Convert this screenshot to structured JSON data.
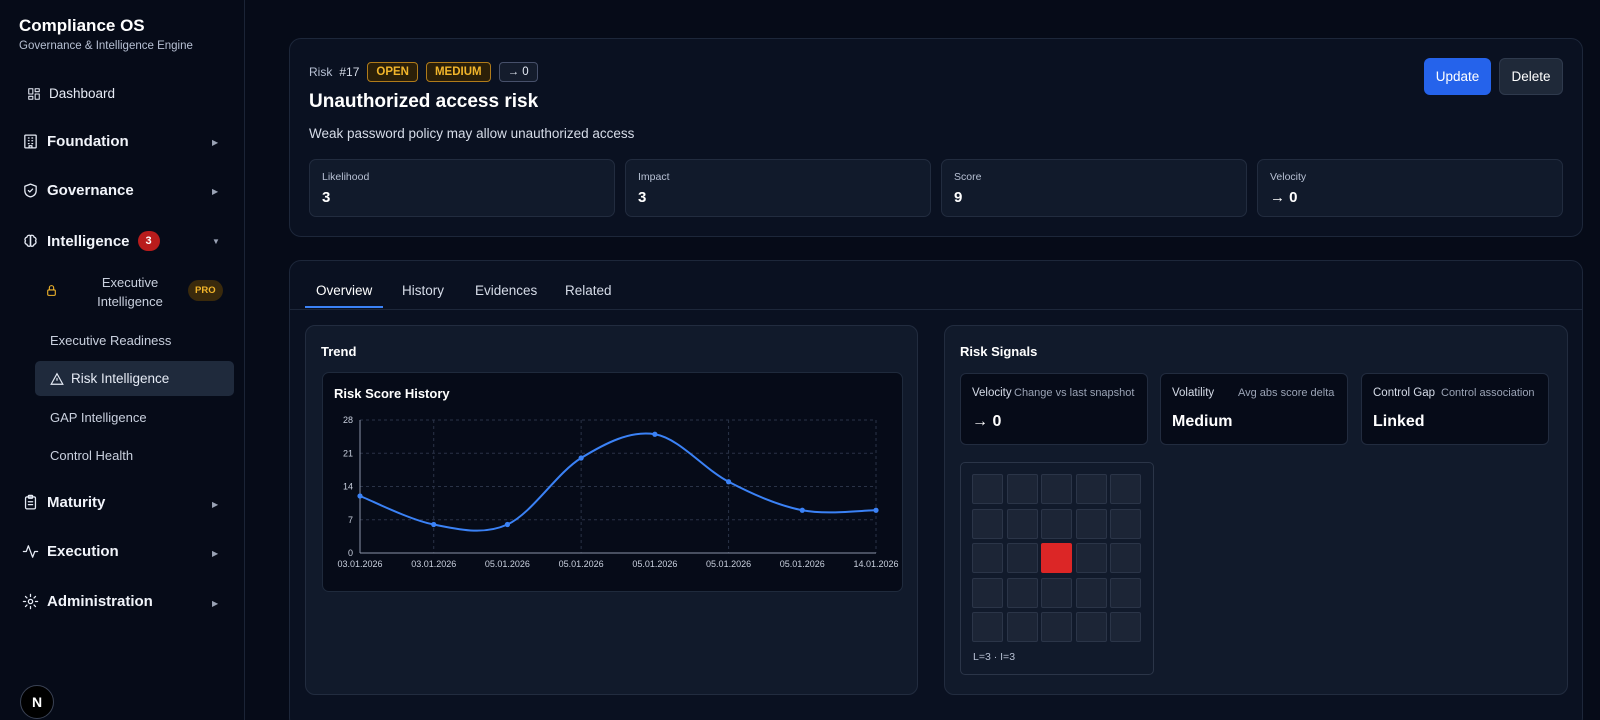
{
  "sidebar": {
    "brand_title": "Compliance OS",
    "brand_subtitle": "Governance & Intelligence Engine",
    "dashboard": "Dashboard",
    "foundation": "Foundation",
    "governance": "Governance",
    "intelligence": "Intelligence",
    "intelligence_badge": "3",
    "executive_intelligence": "Executive Intelligence",
    "pro_badge": "PRO",
    "executive_readiness": "Executive Readiness",
    "risk_intelligence": "Risk Intelligence",
    "gap_intelligence": "GAP Intelligence",
    "control_health": "Control Health",
    "maturity": "Maturity",
    "execution": "Execution",
    "administration": "Administration",
    "avatar_letter": "N"
  },
  "risk": {
    "crumb": "Risk",
    "number": "#17",
    "status": "OPEN",
    "severity": "MEDIUM",
    "velocity_pill": "→ 0",
    "title": "Unauthorized access risk",
    "description": "Weak password policy may allow unauthorized access",
    "update_label": "Update",
    "delete_label": "Delete",
    "metrics": [
      {
        "label": "Likelihood",
        "value": "3"
      },
      {
        "label": "Impact",
        "value": "3"
      },
      {
        "label": "Score",
        "value": "9"
      },
      {
        "label": "Velocity",
        "value": "→ 0"
      }
    ]
  },
  "tabs": [
    "Overview",
    "History",
    "Evidences",
    "Related"
  ],
  "trend": {
    "panel_title": "Trend"
  },
  "chart_data": {
    "type": "line",
    "title": "Risk Score History",
    "x": [
      "03.01.2026",
      "03.01.2026",
      "05.01.2026",
      "05.01.2026",
      "05.01.2026",
      "05.01.2026",
      "05.01.2026",
      "14.01.2026"
    ],
    "values": [
      12,
      6,
      6,
      20,
      25,
      15,
      9,
      9
    ],
    "ylim": [
      0,
      28
    ],
    "yticks": [
      "0",
      "7",
      "14",
      "21",
      "28"
    ],
    "grid": true,
    "line_color": "#3b82f6"
  },
  "signals": {
    "panel_title": "Risk Signals",
    "cards": [
      {
        "label": "Velocity",
        "desc": "Change vs last snapshot",
        "value": "→ 0"
      },
      {
        "label": "Volatility",
        "desc": "Avg abs score delta",
        "value": "Medium"
      },
      {
        "label": "Control Gap",
        "desc": "Control association",
        "value": "Linked"
      }
    ],
    "heatmap": {
      "rows": 5,
      "cols": 5,
      "likelihood": 3,
      "impact": 3,
      "label": "L=3 · I=3",
      "hot_color": "#dc2626"
    }
  }
}
